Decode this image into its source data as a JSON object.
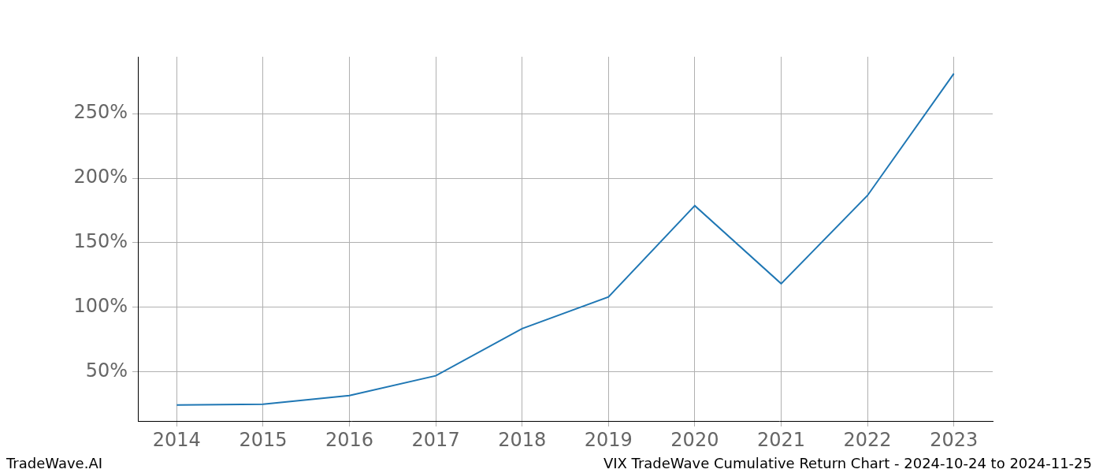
{
  "chart_data": {
    "type": "line",
    "title": "VIX TradeWave Cumulative Return Chart - 2024-10-24 to 2024-11-25",
    "annotations": [
      "TradeWave.AI"
    ],
    "x": [
      2014,
      2015,
      2016,
      2017,
      2018,
      2019,
      2020,
      2021,
      2022,
      2023
    ],
    "values": [
      24.4,
      25,
      31.7,
      47,
      83.5,
      108,
      178.7,
      118.3,
      186.6,
      281
    ],
    "color": "#1f77b4",
    "xlim": [
      2013.55,
      2023.45
    ],
    "xticks": [
      2014,
      2015,
      2016,
      2017,
      2018,
      2019,
      2020,
      2021,
      2022,
      2023
    ],
    "ylim": [
      12,
      294
    ],
    "yticks": [
      {
        "value": 50,
        "label": "50%"
      },
      {
        "value": 100,
        "label": "100%"
      },
      {
        "value": 150,
        "label": "150%"
      },
      {
        "value": 200,
        "label": "200%"
      },
      {
        "value": 250,
        "label": "250%"
      }
    ],
    "grid": true
  }
}
